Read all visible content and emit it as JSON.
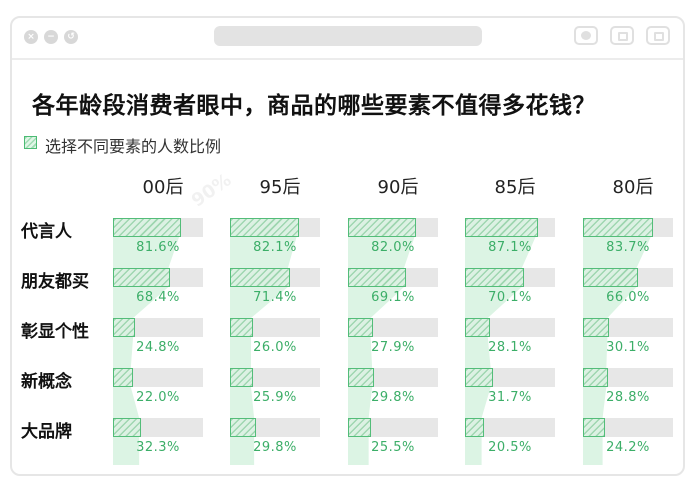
{
  "window": {
    "controls": [
      "close-icon",
      "minimize-icon",
      "maximize-icon"
    ],
    "right_buttons": [
      "circle-icon",
      "share-icon",
      "copy-icon"
    ]
  },
  "chart_data": {
    "type": "bar",
    "title": "各年龄段消费者眼中，商品的哪些要素不值得多花钱？",
    "legend": "选择不同要素的人数比例",
    "columns": [
      "00后",
      "95后",
      "90后",
      "85后",
      "80后"
    ],
    "rows": [
      "代言人",
      "朋友都买",
      "彰显个性",
      "新概念",
      "大品牌"
    ],
    "values": [
      [
        81.6,
        82.1,
        82.0,
        87.1,
        83.7
      ],
      [
        68.4,
        71.4,
        69.1,
        70.1,
        66.0
      ],
      [
        24.8,
        26.0,
        27.9,
        28.1,
        30.1
      ],
      [
        22.0,
        25.9,
        29.8,
        31.7,
        28.8
      ],
      [
        32.3,
        29.8,
        25.5,
        20.5,
        24.2
      ]
    ],
    "labels": [
      [
        "81.6%",
        "82.1%",
        "82.0%",
        "87.1%",
        "83.7%"
      ],
      [
        "68.4%",
        "71.4%",
        "69.1%",
        "70.1%",
        "66.0%"
      ],
      [
        "24.8%",
        "26.0%",
        "27.9%",
        "28.1%",
        "30.1%"
      ],
      [
        "22.0%",
        "25.9%",
        "29.8%",
        "31.7%",
        "28.8%"
      ],
      [
        "32.3%",
        "29.8%",
        "25.5%",
        "20.5%",
        "24.2%"
      ]
    ],
    "colors": {
      "bar_border": "#53bd79",
      "bar_fill": "#dcf1e3",
      "track": "#e7e7e7",
      "ribbon": "#dcf4e4",
      "label": "#3cae68"
    }
  }
}
